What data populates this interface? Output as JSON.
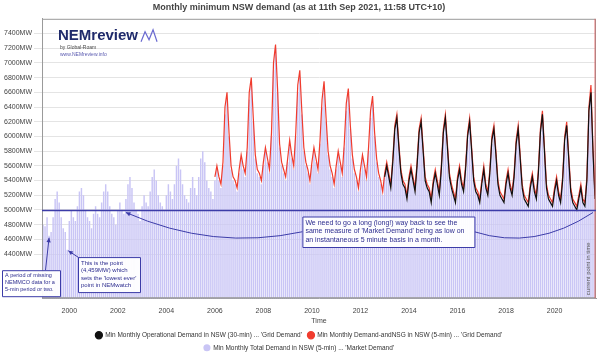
{
  "chart_data": {
    "type": "bar",
    "title": "Monthly minimum NSW demand (as at 11th Sep 2021, 11:58 UTC+10)",
    "x_label": "Time",
    "categories": [
      null,
      null,
      null,
      null,
      null,
      null,
      null,
      null,
      null,
      null,
      null,
      null,
      null,
      "2000",
      null,
      null,
      null,
      null,
      null,
      null,
      null,
      null,
      null,
      null,
      null,
      null,
      null,
      null,
      null,
      null,
      null,
      null,
      null,
      null,
      null,
      null,
      null,
      "2002",
      null,
      null,
      null,
      null,
      null,
      null,
      null,
      null,
      null,
      null,
      null,
      null,
      null,
      null,
      null,
      null,
      null,
      null,
      null,
      null,
      null,
      null,
      null,
      "2004",
      null,
      null,
      null,
      null,
      null,
      null,
      null,
      null,
      null,
      null,
      null,
      null,
      null,
      null,
      null,
      null,
      null,
      null,
      null,
      null,
      null,
      null,
      null,
      "2006",
      null,
      null,
      null,
      null,
      null,
      null,
      null,
      null,
      null,
      null,
      null,
      null,
      null,
      null,
      null,
      null,
      null,
      null,
      null,
      null,
      null,
      null,
      null,
      "2008",
      null,
      null,
      null,
      null,
      null,
      null,
      null,
      null,
      null,
      null,
      null,
      null,
      null,
      null,
      null,
      null,
      null,
      null,
      null,
      null,
      null,
      null,
      null,
      "2010",
      null,
      null,
      null,
      null,
      null,
      null,
      null,
      null,
      null,
      null,
      null,
      null,
      null,
      null,
      null,
      null,
      null,
      null,
      null,
      null,
      null,
      null,
      null,
      "2012",
      null,
      null,
      null,
      null,
      null,
      null,
      null,
      null,
      null,
      null,
      null,
      null,
      null,
      null,
      null,
      null,
      null,
      null,
      null,
      null,
      null,
      null,
      null,
      "2014",
      null,
      null,
      null,
      null,
      null,
      null,
      null,
      null,
      null,
      null,
      null,
      null,
      null,
      null,
      null,
      null,
      null,
      null,
      null,
      null,
      null,
      null,
      null,
      "2016",
      null,
      null,
      null,
      null,
      null,
      null,
      null,
      null,
      null,
      null,
      null,
      null,
      null,
      null,
      null,
      null,
      null,
      null,
      null,
      null,
      null,
      null,
      null,
      "2018",
      null,
      null,
      null,
      null,
      null,
      null,
      null,
      null,
      null,
      null,
      null,
      null,
      null,
      null,
      null,
      null,
      null,
      null,
      null,
      null,
      null,
      null,
      null,
      "2020",
      null,
      null,
      null,
      null,
      null,
      null,
      null,
      null,
      null,
      null,
      null,
      null,
      null,
      null,
      null,
      null,
      null,
      null,
      null,
      null
    ],
    "series": [
      {
        "name": "Min Monthly Operational Demand in NSW (30-min) ... 'Grid Demand'",
        "type": "line",
        "color": "#111111",
        "values": [
          null,
          null,
          null,
          null,
          null,
          null,
          null,
          null,
          null,
          null,
          null,
          null,
          null,
          null,
          null,
          null,
          null,
          null,
          null,
          null,
          null,
          null,
          null,
          null,
          null,
          null,
          null,
          null,
          null,
          null,
          null,
          null,
          null,
          null,
          null,
          null,
          null,
          null,
          null,
          null,
          null,
          null,
          null,
          null,
          null,
          null,
          null,
          null,
          null,
          null,
          null,
          null,
          null,
          null,
          null,
          null,
          null,
          null,
          null,
          null,
          null,
          null,
          null,
          null,
          null,
          null,
          null,
          null,
          null,
          null,
          null,
          null,
          null,
          null,
          null,
          null,
          null,
          null,
          null,
          null,
          null,
          null,
          null,
          null,
          null,
          null,
          null,
          null,
          null,
          null,
          null,
          null,
          null,
          null,
          null,
          null,
          null,
          null,
          null,
          null,
          null,
          null,
          null,
          null,
          null,
          null,
          null,
          null,
          null,
          null,
          null,
          null,
          null,
          null,
          null,
          null,
          null,
          null,
          null,
          null,
          null,
          null,
          null,
          null,
          null,
          null,
          null,
          null,
          null,
          null,
          null,
          null,
          null,
          null,
          null,
          null,
          null,
          null,
          null,
          null,
          null,
          null,
          null,
          null,
          null,
          null,
          null,
          null,
          null,
          null,
          null,
          null,
          null,
          null,
          null,
          null,
          null,
          null,
          null,
          null,
          null,
          null,
          null,
          null,
          null,
          null,
          null,
          null,
          null,
          5450,
          5600,
          5450,
          5300,
          5650,
          6100,
          6250,
          5850,
          5500,
          5350,
          5300,
          5150,
          5400,
          5550,
          5400,
          5250,
          5600,
          6050,
          6200,
          5800,
          5400,
          5300,
          5250,
          5100,
          5350,
          5500,
          5350,
          5200,
          5550,
          6050,
          6250,
          5850,
          5450,
          5300,
          5200,
          5100,
          5400,
          5550,
          5350,
          5250,
          5550,
          6000,
          6200,
          5800,
          5400,
          5250,
          5200,
          5100,
          5350,
          5550,
          5300,
          5200,
          5500,
          5950,
          6100,
          5750,
          5350,
          5200,
          5150,
          5100,
          5350,
          5500,
          5300,
          5200,
          5450,
          5900,
          6100,
          5700,
          5300,
          5150,
          5100,
          5050,
          5300,
          5450,
          5250,
          5150,
          5500,
          6050,
          6300,
          5800,
          5300,
          5150,
          5100,
          5050,
          5250,
          5400,
          5200,
          5100,
          5400,
          5950,
          6150,
          5700,
          5250,
          5100,
          5050,
          5000,
          5150,
          5300,
          5100,
          5050,
          5400,
          6350,
          6600,
          5800,
          5150
        ]
      },
      {
        "name": "Min Monthly Demand-andNSG in NSW (5-min) ... 'Grid Demand'",
        "type": "line",
        "color": "#f03c2e",
        "values": [
          null,
          null,
          null,
          null,
          null,
          null,
          null,
          null,
          null,
          null,
          null,
          null,
          null,
          null,
          null,
          null,
          null,
          null,
          null,
          null,
          null,
          null,
          null,
          null,
          null,
          null,
          null,
          null,
          null,
          null,
          null,
          null,
          null,
          null,
          null,
          null,
          null,
          null,
          null,
          null,
          null,
          null,
          null,
          null,
          null,
          null,
          null,
          null,
          null,
          null,
          null,
          null,
          null,
          null,
          null,
          null,
          null,
          null,
          null,
          null,
          null,
          null,
          null,
          null,
          null,
          null,
          null,
          null,
          null,
          null,
          null,
          null,
          null,
          null,
          null,
          null,
          null,
          null,
          null,
          null,
          null,
          null,
          null,
          null,
          null,
          5450,
          5600,
          5450,
          5350,
          5650,
          6400,
          6600,
          6050,
          5600,
          5450,
          5400,
          5300,
          5550,
          5750,
          5600,
          5500,
          5850,
          6600,
          6800,
          6250,
          5750,
          5550,
          5500,
          5400,
          5650,
          5850,
          5700,
          5550,
          6050,
          7000,
          7250,
          6650,
          5900,
          5650,
          5550,
          5450,
          5700,
          5950,
          5750,
          5600,
          6050,
          6700,
          6900,
          6350,
          5850,
          5650,
          5550,
          5400,
          5650,
          5850,
          5700,
          5550,
          5950,
          6500,
          6750,
          6250,
          5800,
          5600,
          5500,
          5350,
          5600,
          5800,
          5650,
          5500,
          5900,
          6450,
          6650,
          6150,
          5750,
          5550,
          5450,
          5300,
          5550,
          5750,
          5600,
          5450,
          5850,
          6350,
          6550,
          6050,
          5700,
          5500,
          5400,
          5250,
          5500,
          5650,
          5500,
          5350,
          5700,
          6150,
          6300,
          5900,
          5550,
          5400,
          5350,
          5200,
          5450,
          5600,
          5450,
          5300,
          5650,
          6100,
          6250,
          5850,
          5450,
          5350,
          5300,
          5150,
          5400,
          5550,
          5400,
          5250,
          5600,
          6100,
          6300,
          5900,
          5500,
          5350,
          5250,
          5150,
          5450,
          5600,
          5400,
          5300,
          5600,
          6050,
          6250,
          5850,
          5450,
          5300,
          5250,
          5150,
          5400,
          5600,
          5350,
          5250,
          5550,
          6000,
          6150,
          5800,
          5400,
          5250,
          5200,
          5150,
          5400,
          5550,
          5350,
          5250,
          5500,
          5950,
          6150,
          5750,
          5350,
          5200,
          5150,
          5100,
          5350,
          5500,
          5300,
          5200,
          5550,
          6100,
          6350,
          5850,
          5350,
          5200,
          5150,
          5100,
          5300,
          5450,
          5250,
          5150,
          5450,
          6000,
          6200,
          5750,
          5300,
          5150,
          5100,
          5050,
          5200,
          5350,
          5150,
          5100,
          5450,
          6400,
          6700,
          5850,
          5200
        ]
      },
      {
        "name": "Min Monthly Total Demand in NSW (5-min) ... 'Market Demand'",
        "type": "bar",
        "color": "#c9c5f5",
        "values": [
          4800,
          4780,
          4900,
          4650,
          4700,
          4900,
          5150,
          5250,
          5100,
          4900,
          4750,
          4700,
          4459,
          4850,
          5000,
          4900,
          4850,
          5050,
          5250,
          5300,
          5200,
          5000,
          4900,
          4850,
          4750,
          4950,
          5050,
          4950,
          4900,
          5100,
          5250,
          5350,
          5250,
          5050,
          4950,
          4900,
          4800,
          5000,
          5100,
          5000,
          4950,
          5150,
          5350,
          5450,
          5300,
          5100,
          5000,
          4950,
          4850,
          5050,
          5200,
          5100,
          5050,
          5250,
          5450,
          5550,
          5400,
          5200,
          5100,
          5050,
          5000,
          5200,
          5350,
          5250,
          5150,
          5350,
          5600,
          5700,
          5550,
          5350,
          5200,
          5150,
          5100,
          5300,
          5450,
          5300,
          5200,
          5450,
          5700,
          5800,
          5650,
          5400,
          5300,
          5250,
          5150,
          5400,
          5550,
          5400,
          5300,
          5600,
          6300,
          6500,
          6000,
          5550,
          5400,
          5350,
          5250,
          5500,
          5700,
          5550,
          5450,
          5800,
          6500,
          6700,
          6200,
          5700,
          5500,
          5450,
          5350,
          5600,
          5800,
          5650,
          5500,
          6000,
          6900,
          7200,
          6600,
          5850,
          5600,
          5500,
          5400,
          5650,
          5900,
          5700,
          5550,
          6000,
          6600,
          6800,
          6300,
          5800,
          5600,
          5500,
          5350,
          5600,
          5800,
          5650,
          5500,
          5900,
          6400,
          6650,
          6200,
          5750,
          5550,
          5450,
          5300,
          5550,
          5750,
          5600,
          5450,
          5850,
          6350,
          6550,
          6100,
          5700,
          5500,
          5400,
          5250,
          5500,
          5700,
          5550,
          5400,
          5800,
          6250,
          6450,
          6000,
          5650,
          5450,
          5350,
          5200,
          5450,
          5600,
          5450,
          5300,
          5650,
          6050,
          6200,
          5850,
          5500,
          5350,
          5300,
          5150,
          5400,
          5550,
          5400,
          5250,
          5600,
          6000,
          6150,
          5800,
          5400,
          5300,
          5250,
          5100,
          5350,
          5500,
          5350,
          5200,
          5550,
          6000,
          6200,
          5850,
          5450,
          5300,
          5200,
          5100,
          5400,
          5550,
          5350,
          5250,
          5550,
          5950,
          6150,
          5800,
          5400,
          5250,
          5200,
          5100,
          5350,
          5550,
          5300,
          5200,
          5500,
          5900,
          6050,
          5750,
          5350,
          5200,
          5150,
          5100,
          5350,
          5500,
          5300,
          5200,
          5450,
          5850,
          6050,
          5700,
          5300,
          5150,
          5100,
          5050,
          5300,
          5450,
          5250,
          5150,
          5500,
          6000,
          6250,
          5800,
          5300,
          5150,
          5100,
          5050,
          5250,
          5400,
          5200,
          5100,
          5400,
          5900,
          6100,
          5700,
          5250,
          5100,
          5050,
          5000,
          5150,
          5300,
          5100,
          5050,
          5400,
          6300,
          6650,
          5800,
          5150
        ]
      }
    ],
    "ylim": [
      3800,
      7600
    ],
    "yticks": [
      {
        "value": 4400,
        "label": "4400MW"
      },
      {
        "value": 4600,
        "label": "4600MW"
      },
      {
        "value": 4800,
        "label": "4800MW"
      },
      {
        "value": 5000,
        "label": "5000MW"
      },
      {
        "value": 5200,
        "label": "5200MW"
      },
      {
        "value": 5400,
        "label": "5400MW"
      },
      {
        "value": 5600,
        "label": "5600MW"
      },
      {
        "value": 5800,
        "label": "5800MW"
      },
      {
        "value": 6000,
        "label": "6000MW"
      },
      {
        "value": 6200,
        "label": "6200MW"
      },
      {
        "value": 6400,
        "label": "6400MW"
      },
      {
        "value": 6600,
        "label": "6600MW"
      },
      {
        "value": 6800,
        "label": "6800MW"
      },
      {
        "value": 7000,
        "label": "7000MW"
      },
      {
        "value": 7200,
        "label": "7200MW"
      },
      {
        "value": 7400,
        "label": "7400MW"
      }
    ],
    "grid": true,
    "legend": "bottom",
    "reference_line": 5000,
    "annotations": {
      "lowest_point": "This is the point (4,459MW) which sets the 'lowest ever' point in NEMwatch",
      "missing_data": "A period of missing NEMMCO data for a 5-min period or two.",
      "long_way_back": "We need to go a long (long!) way back to see the same measure of 'Market Demand' being as low on an instantaneous 5 minute basis in a month.",
      "current_point": "current point in time"
    },
    "logo": {
      "name": "NEMreview",
      "byline": "by Global-Roam",
      "url": "www.NEMreview.info"
    }
  }
}
